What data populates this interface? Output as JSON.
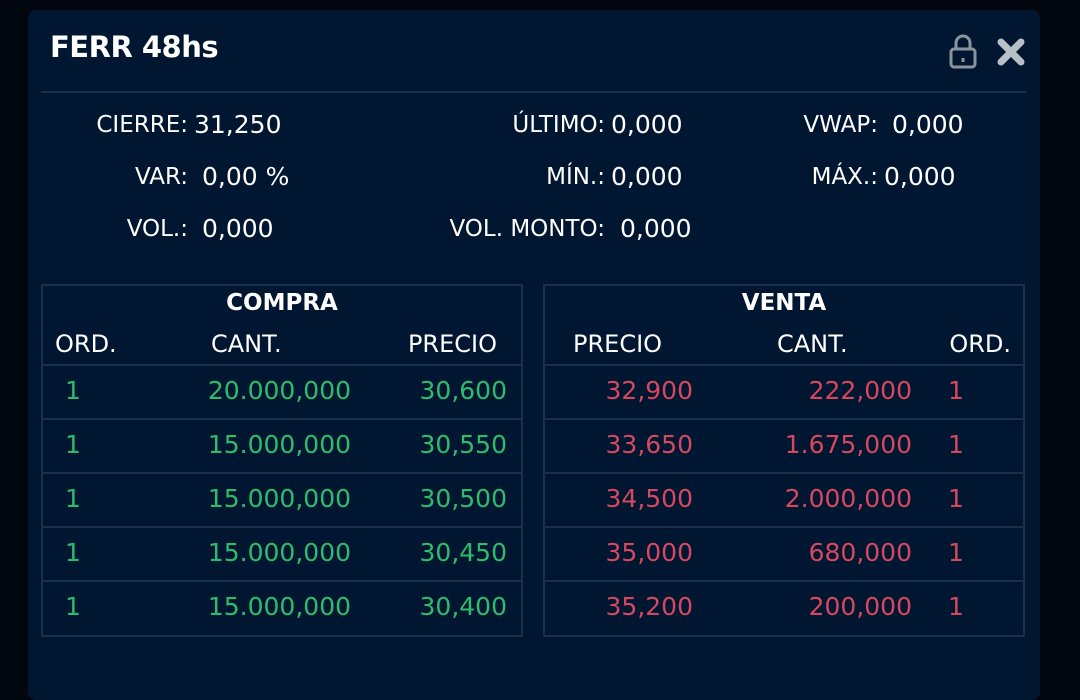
{
  "header": {
    "title": "FERR 48hs",
    "icons": [
      "lock-icon",
      "close-icon"
    ]
  },
  "stats": {
    "cierre": {
      "label": "CIERRE:",
      "value": "31,250"
    },
    "ultimo": {
      "label": "ÚLTIMO:",
      "value": "0,000"
    },
    "vwap": {
      "label": "VWAP:",
      "value": "0,000"
    },
    "var": {
      "label": "VAR:",
      "value": "0,00 %"
    },
    "min": {
      "label": "MÍN.:",
      "value": "0,000"
    },
    "max": {
      "label": "MÁX.:",
      "value": "0,000"
    },
    "vol": {
      "label": "VOL.:",
      "value": "0,000"
    },
    "vol_monto": {
      "label": "VOL. MONTO:",
      "value": "0,000"
    }
  },
  "compra": {
    "title": "COMPRA",
    "columns": [
      "ORD.",
      "CANT.",
      "PRECIO"
    ],
    "rows": [
      [
        "1",
        "20.000,000",
        "30,600"
      ],
      [
        "1",
        "15.000,000",
        "30,550"
      ],
      [
        "1",
        "15.000,000",
        "30,500"
      ],
      [
        "1",
        "15.000,000",
        "30,450"
      ],
      [
        "1",
        "15.000,000",
        "30,400"
      ]
    ]
  },
  "venta": {
    "title": "VENTA",
    "columns": [
      "PRECIO",
      "CANT.",
      "ORD."
    ],
    "rows": [
      [
        "32,900",
        "222,000",
        "1"
      ],
      [
        "33,650",
        "1.675,000",
        "1"
      ],
      [
        "34,500",
        "2.000,000",
        "1"
      ],
      [
        "35,000",
        "680,000",
        "1"
      ],
      [
        "35,200",
        "200,000",
        "1"
      ]
    ]
  },
  "colors": {
    "background": "#011630",
    "buy": "#2fbb6c",
    "sell": "#d5485f",
    "border": "#1b3048"
  }
}
